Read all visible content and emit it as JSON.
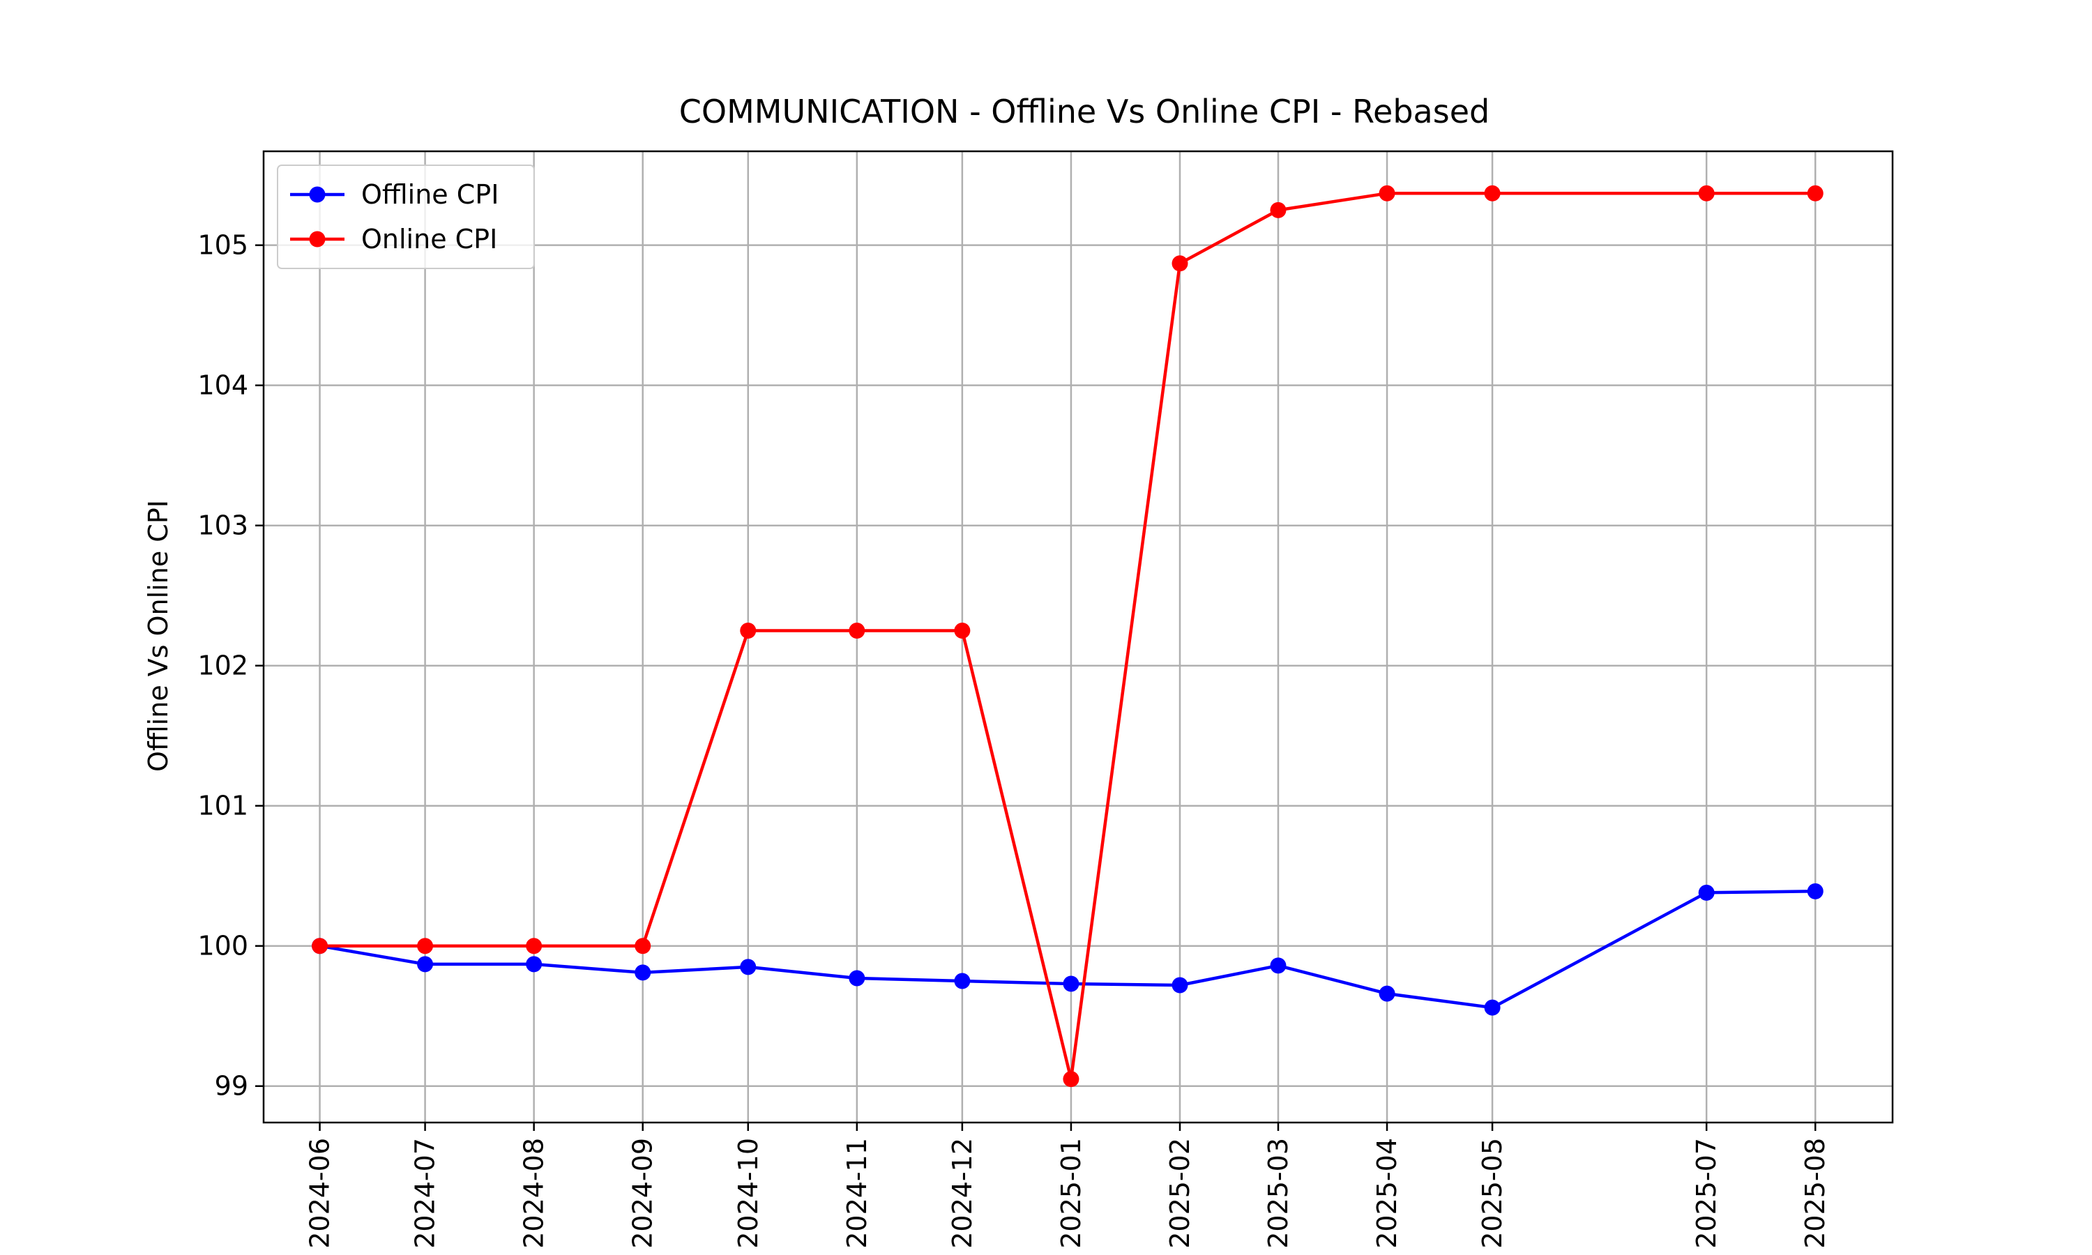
{
  "chart_data": {
    "type": "line",
    "title": "COMMUNICATION - Offline Vs Online CPI - Rebased",
    "xlabel": "",
    "ylabel": "Offline Vs Online CPI",
    "x": [
      "2024-06",
      "2024-07",
      "2024-08",
      "2024-09",
      "2024-10",
      "2024-11",
      "2024-12",
      "2025-01",
      "2025-02",
      "2025-03",
      "2025-04",
      "2025-05",
      "2025-07",
      "2025-08"
    ],
    "x_axis": "date (monthly)",
    "xlim": [
      "2024-05-16",
      "2025-08-23"
    ],
    "ylim": [
      98.74,
      105.67
    ],
    "yticks": [
      99,
      100,
      101,
      102,
      103,
      104,
      105
    ],
    "grid": true,
    "legend": "top-left",
    "series": [
      {
        "name": "Offline CPI",
        "color": "#0000ff",
        "marker": "circle",
        "values": [
          100.0,
          99.87,
          99.87,
          99.81,
          99.85,
          99.77,
          99.75,
          99.73,
          99.72,
          99.86,
          99.66,
          99.56,
          100.38,
          100.39
        ]
      },
      {
        "name": "Online CPI",
        "color": "#ff0000",
        "marker": "circle",
        "values": [
          100.0,
          100.0,
          100.0,
          100.0,
          102.25,
          102.25,
          102.25,
          99.05,
          104.87,
          105.25,
          105.37,
          105.37,
          105.37,
          105.37
        ]
      }
    ]
  }
}
